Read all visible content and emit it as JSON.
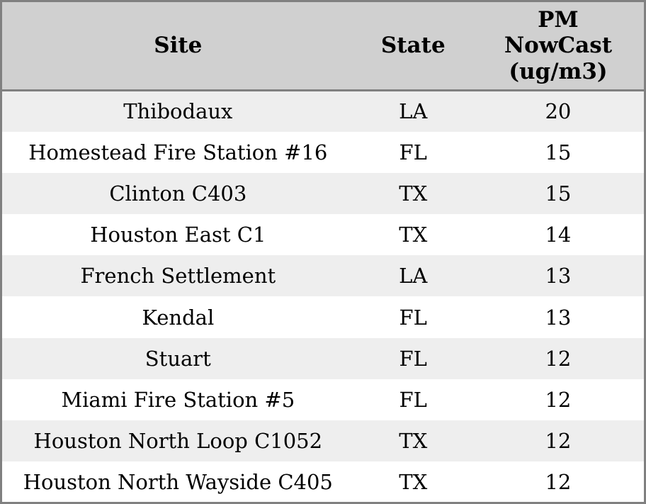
{
  "colors": {
    "border": "#808080",
    "header_bg": "#d0d0d0",
    "row_odd_bg": "#eeeeee",
    "row_even_bg": "#ffffff",
    "text": "#000000"
  },
  "chart_data": {
    "type": "table",
    "columns": [
      "Site",
      "State",
      "PM NowCast (ug/m3)"
    ],
    "rows": [
      [
        "Thibodaux",
        "LA",
        20
      ],
      [
        "Homestead Fire Station #16",
        "FL",
        15
      ],
      [
        "Clinton C403",
        "TX",
        15
      ],
      [
        "Houston East C1",
        "TX",
        14
      ],
      [
        "French Settlement",
        "LA",
        13
      ],
      [
        "Kendal",
        "FL",
        13
      ],
      [
        "Stuart",
        "FL",
        12
      ],
      [
        "Miami Fire Station #5",
        "FL",
        12
      ],
      [
        "Houston North Loop C1052",
        "TX",
        12
      ],
      [
        "Houston North Wayside C405",
        "TX",
        12
      ]
    ]
  }
}
